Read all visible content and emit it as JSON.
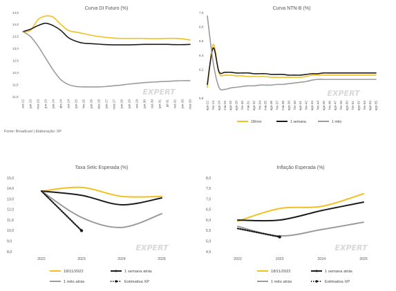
{
  "source_note": "Fonte: Broadcast | Elaboração: XP",
  "watermark": "EXPERT",
  "colors": {
    "yellow": "#f2c01c",
    "black": "#1a1a1a",
    "gray": "#9a9a9a"
  },
  "chart_data": [
    {
      "type": "line",
      "title": "Curva DI Futuro (%)",
      "ylim": [
        11.0,
        14.5
      ],
      "yticks": [
        "14,5",
        "14,0",
        "13,5",
        "13,0",
        "12,5",
        "12,0",
        "11,5",
        "11,0"
      ],
      "categories": [
        "out-22",
        "jan-23",
        "mar-23",
        "jun-23",
        "jan-24",
        "abr-24",
        "out-24",
        "jan-25",
        "fev-25",
        "jan-26",
        "dez-26",
        "jan-27",
        "mar-27",
        "jan-28",
        "jan-29",
        "out-29",
        "jan-30",
        "out-30",
        "jan-31",
        "jul-31",
        "out-32",
        "jan-33",
        "mar-33"
      ],
      "legend": "none",
      "grid": false,
      "series": [
        {
          "name": "18/nov",
          "color": "yellow",
          "values": [
            13.7,
            13.75,
            14.2,
            14.35,
            14.3,
            14.0,
            13.75,
            13.68,
            13.62,
            13.55,
            13.5,
            13.46,
            13.43,
            13.42,
            13.42,
            13.42,
            13.42,
            13.41,
            13.41,
            13.42,
            13.42,
            13.4,
            13.35
          ]
        },
        {
          "name": "1 semana",
          "color": "black",
          "values": [
            13.7,
            13.8,
            13.95,
            14.05,
            13.95,
            13.75,
            13.45,
            13.3,
            13.22,
            13.2,
            13.18,
            13.16,
            13.15,
            13.15,
            13.15,
            13.16,
            13.17,
            13.17,
            13.17,
            13.17,
            13.16,
            13.16,
            13.17
          ]
        },
        {
          "name": "1 mês",
          "color": "gray",
          "values": [
            13.7,
            13.5,
            13.1,
            12.6,
            12.1,
            11.7,
            11.5,
            11.42,
            11.4,
            11.4,
            11.4,
            11.42,
            11.45,
            11.48,
            11.52,
            11.55,
            11.58,
            11.6,
            11.62,
            11.63,
            11.65,
            11.66,
            11.66
          ]
        }
      ]
    },
    {
      "type": "line",
      "title": "Curva NTN-B (%)",
      "ylim": [
        5.8,
        7.0
      ],
      "yticks": [
        "7,0",
        "6,8",
        "6,6",
        "6,4",
        "6,2",
        "5,8"
      ],
      "categories": [
        "ago-22",
        "fev-24",
        "ago-24",
        "mai-25",
        "ago-26",
        "ago-28",
        "fev-30",
        "mai-31",
        "ago-32",
        "fev-34",
        "mai-35",
        "ago-36",
        "fev-37",
        "mai-38",
        "ago-39",
        "fev-40",
        "ago-41",
        "fev-42",
        "ago-43",
        "fev-44",
        "ago-45",
        "fev-46",
        "ago-47",
        "fev-49",
        "ago-50",
        "fev-51",
        "ago-52",
        "fev-53",
        "ago-54",
        "ago-55"
      ],
      "legend": "bottom",
      "grid": false,
      "series": [
        {
          "name": "18/nov",
          "color": "yellow",
          "values": [
            5.95,
            6.55,
            6.15,
            6.12,
            6.12,
            6.11,
            6.11,
            6.1,
            6.1,
            6.1,
            6.1,
            6.09,
            6.09,
            6.09,
            6.09,
            6.09,
            6.09,
            6.1,
            6.12,
            6.12,
            6.12,
            6.12,
            6.12,
            6.12,
            6.12,
            6.12,
            6.12,
            6.12,
            6.12,
            6.12
          ]
        },
        {
          "name": "1 semana",
          "color": "black",
          "values": [
            5.99,
            6.5,
            6.17,
            6.16,
            6.16,
            6.15,
            6.15,
            6.15,
            6.14,
            6.14,
            6.14,
            6.13,
            6.13,
            6.13,
            6.12,
            6.12,
            6.12,
            6.13,
            6.14,
            6.14,
            6.15,
            6.15,
            6.15,
            6.15,
            6.15,
            6.15,
            6.15,
            6.15,
            6.15,
            6.15
          ]
        },
        {
          "name": "1 mês",
          "color": "gray",
          "values": [
            6.95,
            6.3,
            5.95,
            5.92,
            5.94,
            5.95,
            5.96,
            5.97,
            5.97,
            5.98,
            5.98,
            5.98,
            5.99,
            5.99,
            6.0,
            6.01,
            6.02,
            6.03,
            6.05,
            6.06,
            6.06,
            6.06,
            6.06,
            6.06,
            6.06,
            6.06,
            6.06,
            6.06,
            6.06,
            6.06
          ]
        }
      ]
    },
    {
      "type": "line",
      "title": "Taxa Selic Esperada (%)",
      "ylim": [
        8.0,
        15.0
      ],
      "yticks": [
        "15,0",
        "14,0",
        "13,0",
        "12,0",
        "11,0",
        "10,0",
        "9,0",
        "8,0"
      ],
      "categories": [
        "2022",
        "2023",
        "2024",
        "2025"
      ],
      "legend": "bottom",
      "grid": false,
      "series": [
        {
          "name": "18/11/2022",
          "color": "yellow",
          "values": [
            13.75,
            14.1,
            13.25,
            13.25
          ]
        },
        {
          "name": "1 semana atrás",
          "color": "black",
          "values": [
            13.75,
            13.35,
            12.45,
            13.1
          ]
        },
        {
          "name": "1 mês atrás",
          "color": "gray",
          "values": [
            13.75,
            11.25,
            10.3,
            11.6
          ]
        },
        {
          "name": "Estimativa XP",
          "color": "black",
          "dotted": true,
          "values": [
            13.75,
            10.0,
            null,
            null
          ]
        }
      ]
    },
    {
      "type": "line",
      "title": "Inflação Esperada (%)",
      "ylim": [
        4.5,
        8.0
      ],
      "yticks": [
        "8,0",
        "7,5",
        "7,0",
        "6,5",
        "6,0",
        "5,5",
        "5,0",
        "4,5"
      ],
      "categories": [
        "2022",
        "2023",
        "2024",
        "2025"
      ],
      "legend": "bottom",
      "grid": false,
      "series": [
        {
          "name": "18/11/2022",
          "color": "yellow",
          "values": [
            5.95,
            6.55,
            6.65,
            7.25
          ]
        },
        {
          "name": "1 semana atrás",
          "color": "black",
          "values": [
            6.0,
            6.0,
            6.45,
            6.85
          ]
        },
        {
          "name": "1 mês atrás",
          "color": "gray",
          "values": [
            5.7,
            5.25,
            5.55,
            5.9
          ]
        },
        {
          "name": "Estimativa XP",
          "color": "black",
          "dotted": true,
          "values": [
            5.6,
            5.2,
            null,
            null
          ]
        }
      ]
    }
  ]
}
